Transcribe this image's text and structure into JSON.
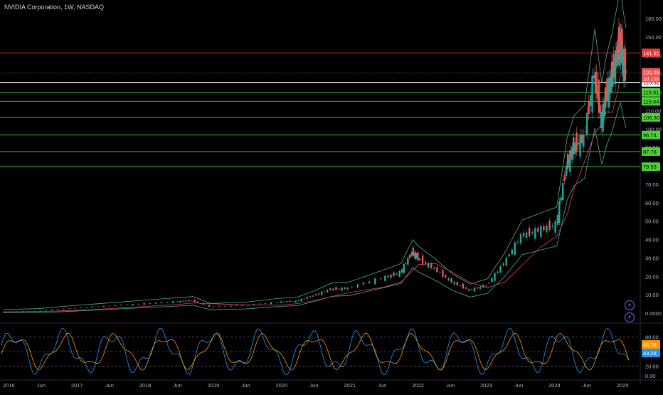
{
  "header": {
    "title": "NVIDIA Corporation, 1W, NASDAQ"
  },
  "colors": {
    "background": "#000000",
    "up": "#26a69a",
    "down": "#ef5350",
    "band": "#4caf8c",
    "ma": "#e0415b",
    "support": "#4cd137",
    "resistance": "#e53935",
    "current": "#ffffff",
    "stoch_k": "#2196f3",
    "stoch_d": "#ff9800"
  },
  "chart_data": {
    "type": "line",
    "title": "NVIDIA Corporation, 1W, NASDAQ",
    "price_axis": {
      "ticks": [
        "160.00",
        "150.00",
        "140.00",
        "130.00",
        "120.00",
        "110.00",
        "100.00",
        "90.00",
        "80.00",
        "70.00",
        "60.00",
        "50.00",
        "40.00",
        "30.00",
        "20.00",
        "10.00",
        "0.0000"
      ],
      "ylim": [
        0,
        160
      ]
    },
    "time_axis": {
      "ticks": [
        "2016",
        "Jun",
        "2017",
        "Jun",
        "2018",
        "Jun",
        "2019",
        "Jun",
        "2020",
        "Jun",
        "2021",
        "Jun",
        "2022",
        "Jun",
        "2023",
        "Jun",
        "2024",
        "Jun",
        "2025"
      ],
      "xlim": [
        2016.0,
        2025.0
      ]
    },
    "price_series": [
      {
        "t": 2016.0,
        "v": 0.8
      },
      {
        "t": 2016.5,
        "v": 1.2
      },
      {
        "t": 2017.0,
        "v": 2.6
      },
      {
        "t": 2017.5,
        "v": 3.8
      },
      {
        "t": 2018.0,
        "v": 5.0
      },
      {
        "t": 2018.5,
        "v": 6.2
      },
      {
        "t": 2018.75,
        "v": 6.8
      },
      {
        "t": 2019.0,
        "v": 3.6
      },
      {
        "t": 2019.5,
        "v": 4.2
      },
      {
        "t": 2020.0,
        "v": 6.0
      },
      {
        "t": 2020.25,
        "v": 6.5
      },
      {
        "t": 2020.5,
        "v": 9.5
      },
      {
        "t": 2020.75,
        "v": 13.0
      },
      {
        "t": 2021.0,
        "v": 13.5
      },
      {
        "t": 2021.5,
        "v": 19.0
      },
      {
        "t": 2021.75,
        "v": 22.0
      },
      {
        "t": 2021.92,
        "v": 33.0
      },
      {
        "t": 2022.0,
        "v": 30.0
      },
      {
        "t": 2022.25,
        "v": 24.0
      },
      {
        "t": 2022.5,
        "v": 17.0
      },
      {
        "t": 2022.75,
        "v": 12.5
      },
      {
        "t": 2023.0,
        "v": 15.0
      },
      {
        "t": 2023.25,
        "v": 27.0
      },
      {
        "t": 2023.5,
        "v": 42.0
      },
      {
        "t": 2023.75,
        "v": 45.0
      },
      {
        "t": 2024.0,
        "v": 48.0
      },
      {
        "t": 2024.15,
        "v": 80.0
      },
      {
        "t": 2024.25,
        "v": 90.0
      },
      {
        "t": 2024.4,
        "v": 95.0
      },
      {
        "t": 2024.55,
        "v": 130.0
      },
      {
        "t": 2024.65,
        "v": 105.0
      },
      {
        "t": 2024.72,
        "v": 118.0
      },
      {
        "t": 2024.8,
        "v": 128.0
      },
      {
        "t": 2024.88,
        "v": 142.0
      },
      {
        "t": 2024.92,
        "v": 148.0
      },
      {
        "t": 2024.96,
        "v": 138.0
      },
      {
        "t": 2025.0,
        "v": 130.39
      }
    ],
    "horizontal_levels": [
      {
        "label": "141.31",
        "value": 141.31,
        "kind": "resistance"
      },
      {
        "label": "125.32",
        "value": 125.32,
        "kind": "current"
      },
      {
        "label": "119.91",
        "value": 119.91,
        "kind": "support"
      },
      {
        "label": "115.04",
        "value": 115.04,
        "kind": "support"
      },
      {
        "label": "106.30",
        "value": 106.3,
        "kind": "support"
      },
      {
        "label": "96.74",
        "value": 96.74,
        "kind": "support"
      },
      {
        "label": "87.76",
        "value": 87.76,
        "kind": "support"
      },
      {
        "label": "79.53",
        "value": 79.53,
        "kind": "support"
      }
    ],
    "last_price": {
      "label": "130.39",
      "value": 130.39,
      "countdown": "2d 13h"
    },
    "oscillator": {
      "ticks": [
        "80.00",
        "20.00",
        "0.00"
      ],
      "ylim": [
        0,
        100
      ],
      "guide_levels": [
        80,
        50,
        20
      ],
      "k_label": "65.76",
      "d_label": "43.28"
    }
  }
}
